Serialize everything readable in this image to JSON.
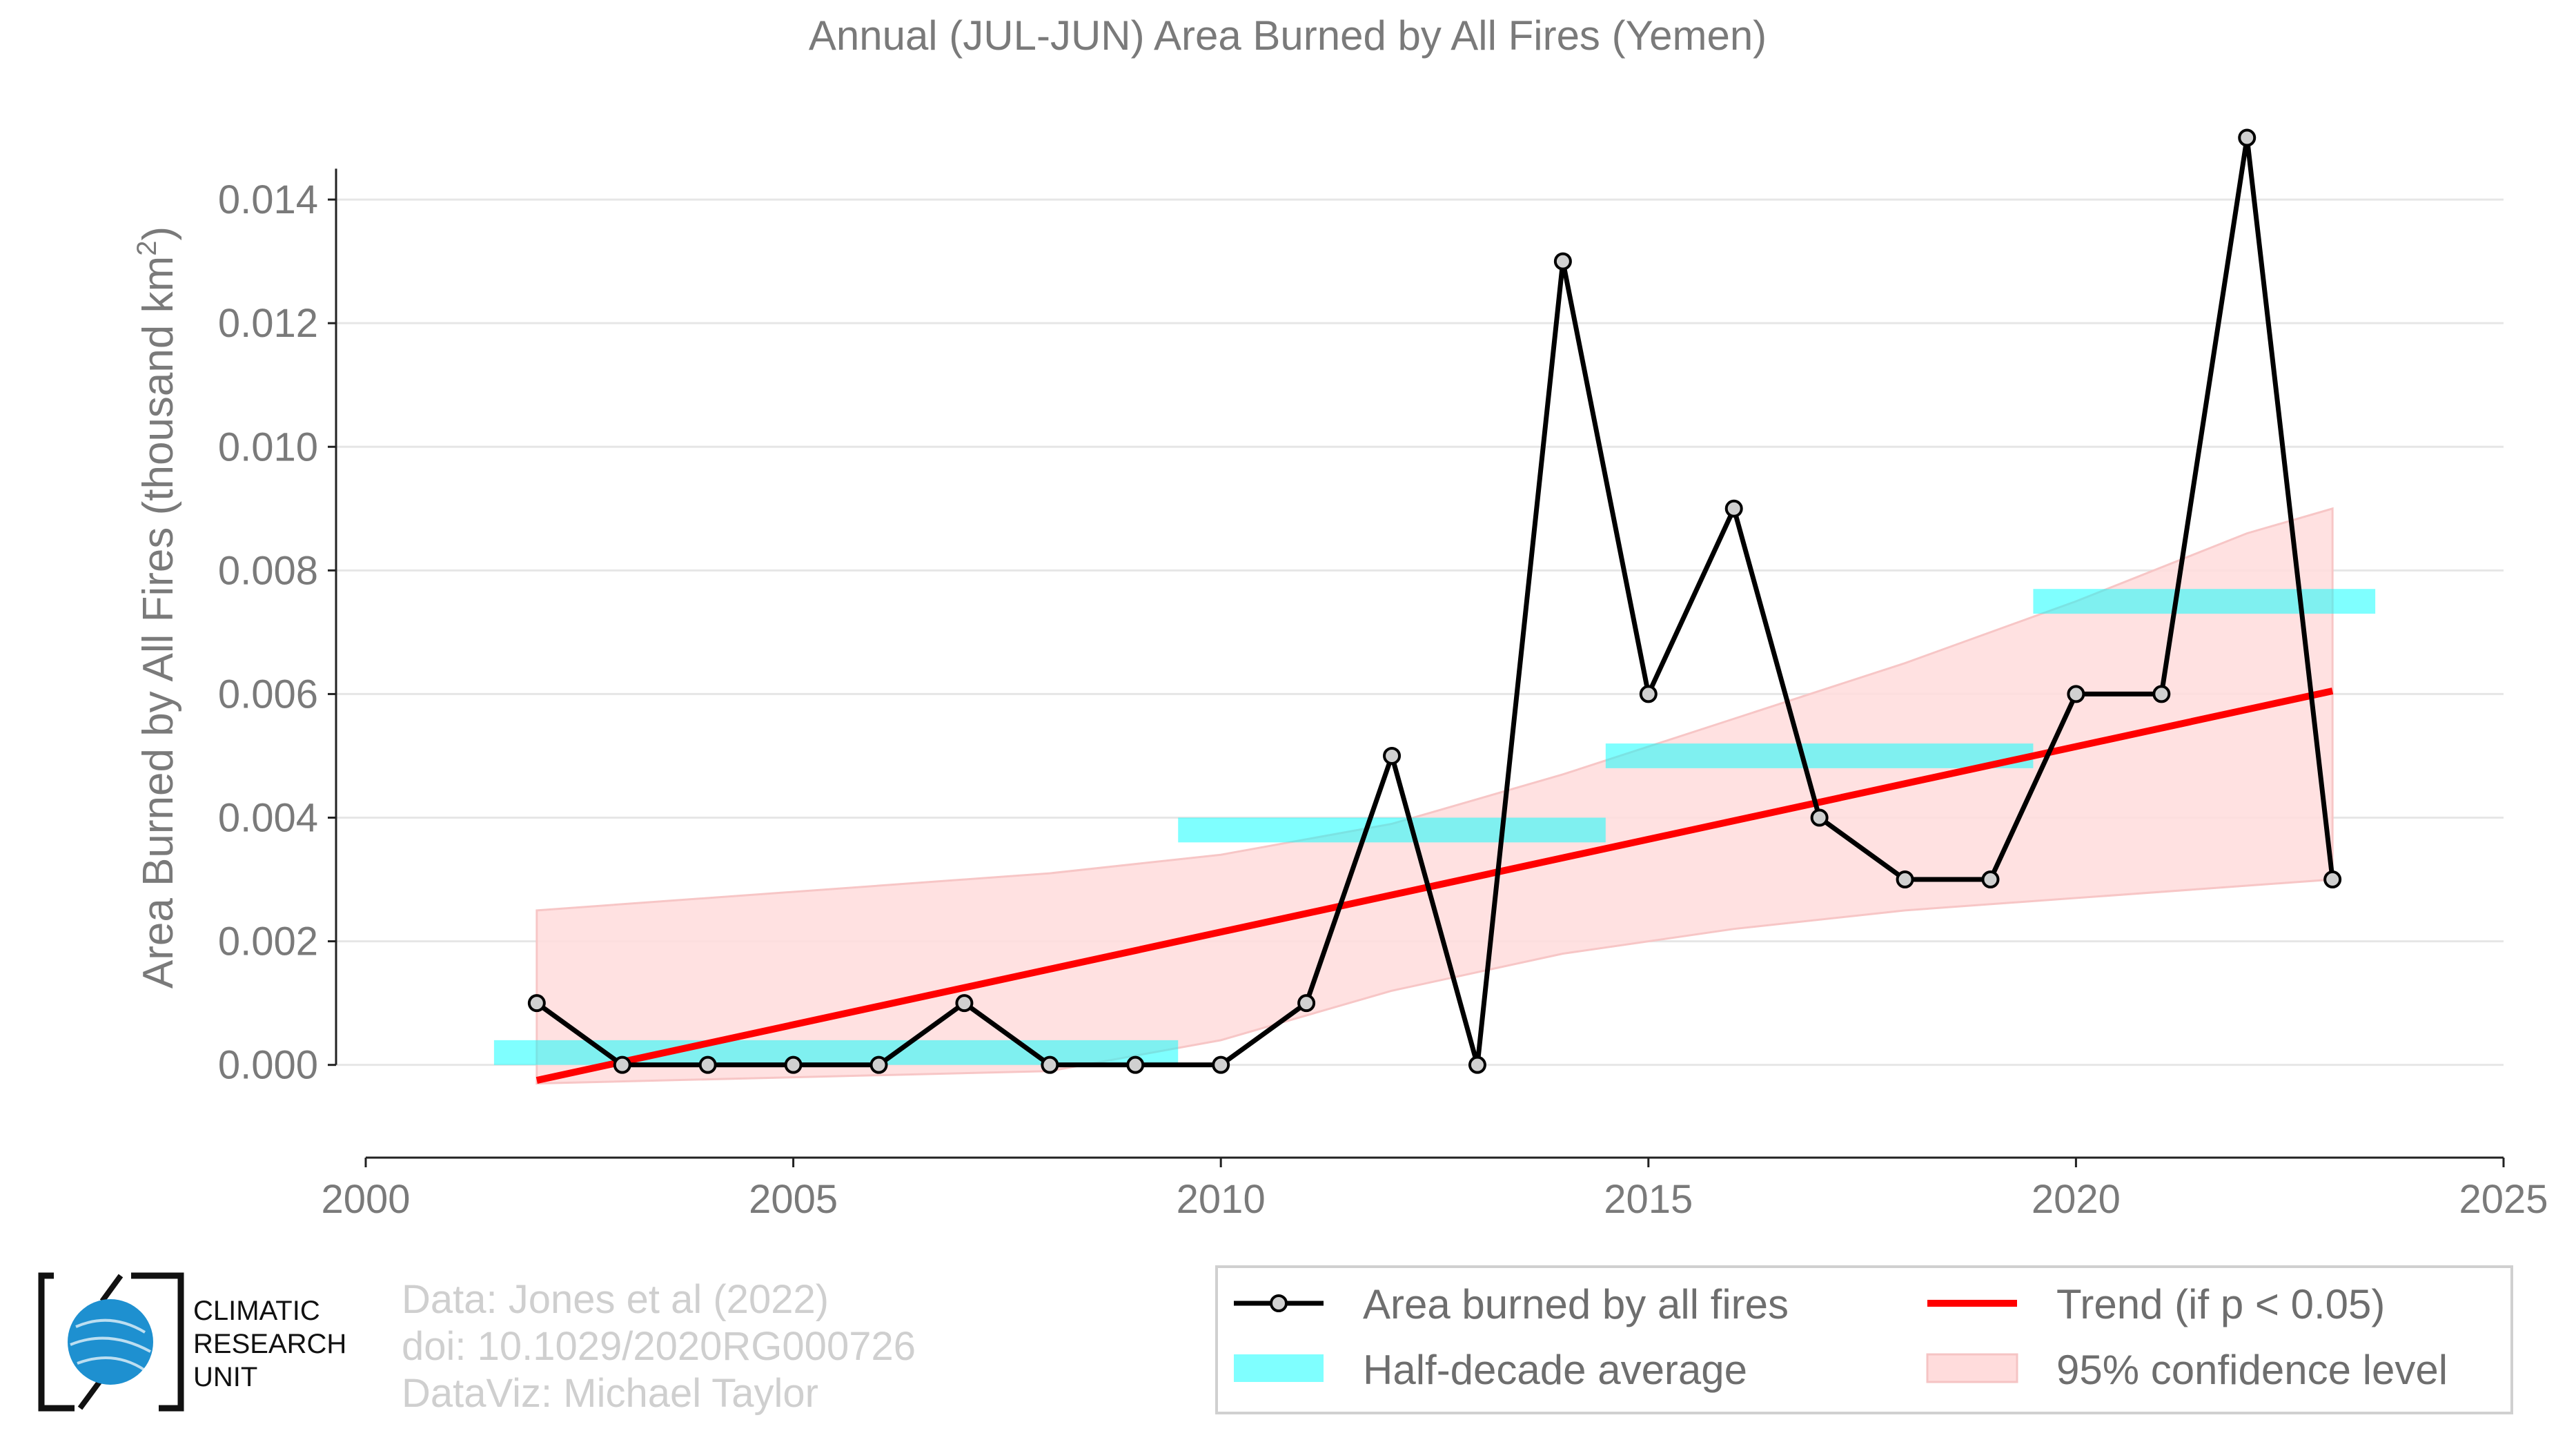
{
  "chart_data": {
    "type": "line",
    "title": "Annual (JUL-JUN) Area Burned by All Fires (Yemen)",
    "xlabel": "",
    "ylabel": "Area Burned by All Fires (thousand km",
    "ylabel_superscript": "2",
    "ylabel_suffix": ")",
    "xlim": [
      2000,
      2025
    ],
    "ylim": [
      -0.0015,
      0.016
    ],
    "x_ticks": [
      2000,
      2005,
      2010,
      2015,
      2020,
      2025
    ],
    "x_tick_labels": [
      "2000",
      "2005",
      "2010",
      "2015",
      "2020",
      "2025"
    ],
    "y_ticks": [
      0,
      0.002,
      0.004,
      0.006,
      0.008,
      0.01,
      0.012,
      0.014
    ],
    "y_tick_labels": [
      "0.000",
      "0.002",
      "0.004",
      "0.006",
      "0.008",
      "0.010",
      "0.012",
      "0.014"
    ],
    "grid": true,
    "series": [
      {
        "name": "Area burned by all fires",
        "color": "#000000",
        "x": [
          2002,
          2003,
          2004,
          2005,
          2006,
          2007,
          2008,
          2009,
          2010,
          2011,
          2012,
          2013,
          2014,
          2015,
          2016,
          2017,
          2018,
          2019,
          2020,
          2021,
          2022,
          2023
        ],
        "values": [
          0.001,
          0.0,
          0.0,
          0.0,
          0.0,
          0.001,
          0.0,
          0.0,
          0.0,
          0.001,
          0.005,
          0.0,
          0.013,
          0.006,
          0.009,
          0.004,
          0.003,
          0.003,
          0.006,
          0.006,
          0.015,
          0.003
        ]
      },
      {
        "name": "Half-decade average",
        "color": "#00ffff",
        "segments": [
          {
            "x_start": 2001.5,
            "x_end": 2009.5,
            "y_low": 0.0,
            "y_high": 0.0004
          },
          {
            "x_start": 2009.5,
            "x_end": 2014.5,
            "y_low": 0.0036,
            "y_high": 0.004
          },
          {
            "x_start": 2014.5,
            "x_end": 2019.5,
            "y_low": 0.0048,
            "y_high": 0.0052
          },
          {
            "x_start": 2019.5,
            "x_end": 2023.5,
            "y_low": 0.0073,
            "y_high": 0.0077
          }
        ]
      },
      {
        "name": "Trend (if p < 0.05)",
        "color": "#ff0000",
        "x": [
          2002,
          2023
        ],
        "values": [
          -0.00025,
          0.00605
        ]
      },
      {
        "name": "95% confidence level",
        "color": "#ffdcdc",
        "x": [
          2002,
          2005,
          2008,
          2010,
          2012,
          2014,
          2016,
          2018,
          2020,
          2022,
          2023
        ],
        "upper": [
          0.0025,
          0.0028,
          0.0031,
          0.0034,
          0.0039,
          0.0047,
          0.0056,
          0.0065,
          0.0075,
          0.0086,
          0.009
        ],
        "lower": [
          -0.0003,
          -0.0002,
          -0.0001,
          0.0004,
          0.0012,
          0.0018,
          0.0022,
          0.0025,
          0.0027,
          0.0029,
          0.003
        ]
      }
    ],
    "legend": {
      "placement": "bottom-right",
      "items": [
        "Area burned by all fires",
        "Trend (if p < 0.05)",
        "Half-decade average",
        "95% confidence level"
      ]
    }
  },
  "credits": {
    "line1": "Data: Jones et al (2022)",
    "line2": "doi: 10.1029/2020RG000726",
    "line3": "DataViz: Michael Taylor"
  },
  "logo": {
    "line1": "CLIMATIC",
    "line2": "RESEARCH",
    "line3": "UNIT",
    "globe_color": "#1e90d0"
  }
}
